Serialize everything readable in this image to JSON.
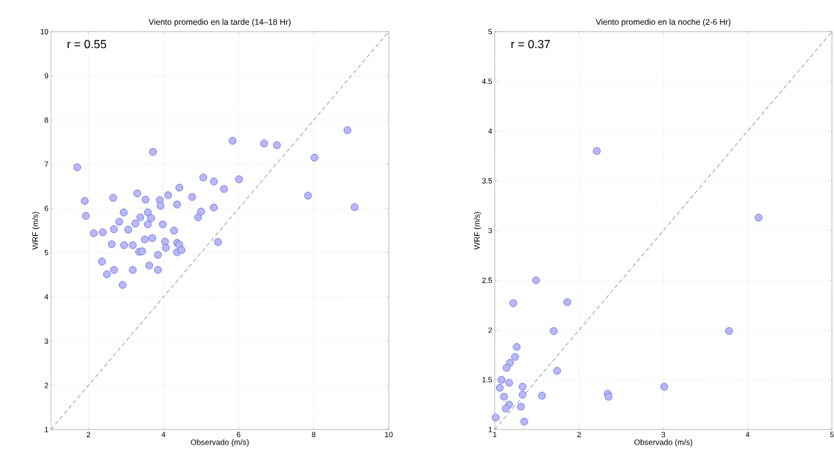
{
  "chart_data": [
    {
      "type": "scatter",
      "title": "Viento promedio en la tarde (14–18 Hr)",
      "xlabel": "Observado (m/s)",
      "ylabel": "WRF (m/s)",
      "xlim": [
        1,
        10
      ],
      "ylim": [
        1,
        10
      ],
      "xticks": [
        2,
        4,
        6,
        8,
        10
      ],
      "yticks": [
        1,
        2,
        3,
        4,
        5,
        6,
        7,
        8,
        9,
        10
      ],
      "grid": true,
      "marker": "circle",
      "annotations": [
        "r = 0.55"
      ],
      "series": [
        {
          "type": "scatter",
          "color": "#b8b8f4",
          "x": [
            1.7,
            1.9,
            1.93,
            2.14,
            2.38,
            2.66,
            2.68,
            2.62,
            2.36,
            2.49,
            2.68,
            2.91,
            2.94,
            2.82,
            3.06,
            2.95,
            3.18,
            3.18,
            3.3,
            3.25,
            3.38,
            3.52,
            3.58,
            3.58,
            3.67,
            3.5,
            3.7,
            3.35,
            3.43,
            3.62,
            3.72,
            3.85,
            3.85,
            3.9,
            3.92,
            3.98,
            4.04,
            4.06,
            4.12,
            4.28,
            4.36,
            4.42,
            4.36,
            4.42,
            4.36,
            4.48,
            4.76,
            4.92,
            5.0,
            5.06,
            5.34,
            5.34,
            5.45,
            5.61,
            5.84,
            6.01,
            6.68,
            7.02,
            7.85,
            8.02,
            8.9,
            9.09
          ],
          "values": [
            6.93,
            6.17,
            5.83,
            5.44,
            5.46,
            6.24,
            5.53,
            5.19,
            4.8,
            4.51,
            4.61,
            4.27,
            5.91,
            5.7,
            5.52,
            5.17,
            5.17,
            4.61,
            6.34,
            5.66,
            5.8,
            6.2,
            5.91,
            5.64,
            5.78,
            5.3,
            5.33,
            5.02,
            5.03,
            4.71,
            7.28,
            4.95,
            4.61,
            6.19,
            6.06,
            5.64,
            5.25,
            5.11,
            6.3,
            5.5,
            6.09,
            6.47,
            5.22,
            5.18,
            5.01,
            5.06,
            6.26,
            5.8,
            5.93,
            6.7,
            6.61,
            6.02,
            5.24,
            6.44,
            7.53,
            6.66,
            7.47,
            7.43,
            6.29,
            7.15,
            7.77,
            6.03
          ]
        },
        {
          "type": "line",
          "color": "#555555",
          "line_style": "dashed",
          "marker": "none",
          "x": [
            1,
            10
          ],
          "values": [
            1,
            10
          ]
        }
      ]
    },
    {
      "type": "scatter",
      "title": "Viento promedio en la noche (2-6 Hr)",
      "xlabel": "Observado (m/s)",
      "ylabel": "WRF (m/s)",
      "xlim": [
        1,
        5
      ],
      "ylim": [
        1,
        5
      ],
      "xticks": [
        1,
        2,
        3,
        4,
        5
      ],
      "yticks": [
        1,
        1.5,
        2,
        2.5,
        3,
        3.5,
        4,
        4.5,
        5
      ],
      "grid": true,
      "marker": "circle",
      "annotations": [
        "r = 0.37"
      ],
      "series": [
        {
          "type": "scatter",
          "color": "#b8b8f4",
          "x": [
            2.21,
            4.13,
            1.49,
            1.22,
            1.86,
            1.7,
            3.78,
            1.26,
            1.24,
            1.18,
            1.14,
            1.74,
            1.08,
            1.17,
            1.06,
            1.33,
            1.11,
            1.33,
            1.56,
            2.34,
            2.35,
            3.01,
            1.17,
            1.13,
            1.31,
            1.01,
            1.35
          ],
          "values": [
            3.8,
            3.13,
            2.5,
            2.27,
            2.28,
            1.99,
            1.99,
            1.83,
            1.73,
            1.67,
            1.62,
            1.59,
            1.5,
            1.47,
            1.42,
            1.43,
            1.33,
            1.35,
            1.34,
            1.36,
            1.33,
            1.43,
            1.25,
            1.21,
            1.23,
            1.12,
            1.08
          ]
        },
        {
          "type": "line",
          "color": "#555555",
          "line_style": "dashed",
          "marker": "none",
          "x": [
            1,
            5
          ],
          "values": [
            1,
            5
          ]
        }
      ]
    }
  ]
}
